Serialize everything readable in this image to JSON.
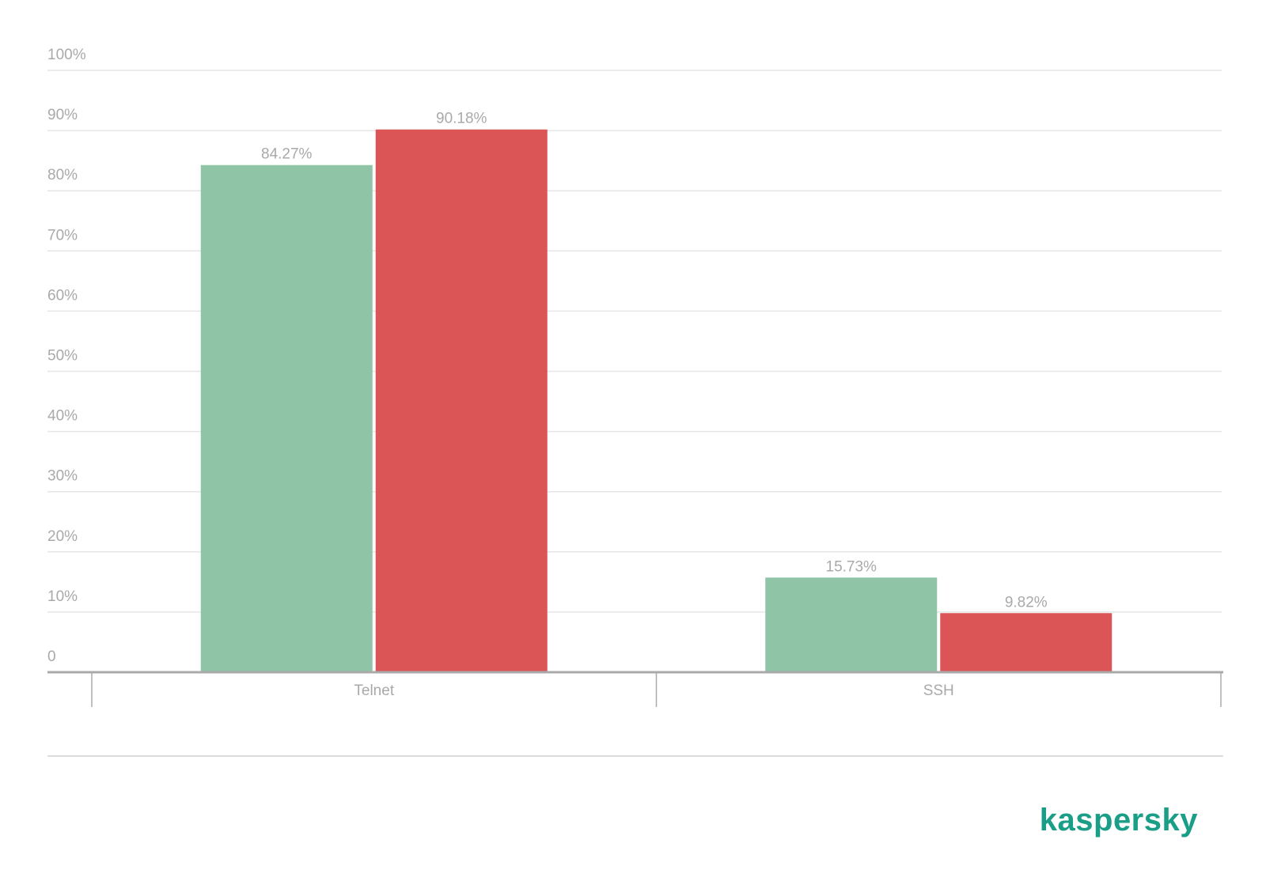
{
  "chart_data": {
    "type": "bar",
    "categories": [
      "Telnet",
      "SSH"
    ],
    "series": [
      {
        "color": "#8fc4a7",
        "values": [
          84.27,
          15.73
        ],
        "value_labels": [
          "84.27%",
          "15.73%"
        ]
      },
      {
        "color": "#db5456",
        "values": [
          90.18,
          9.82
        ],
        "value_labels": [
          "90.18%",
          "9.82%"
        ]
      }
    ],
    "ylim": [
      0,
      100
    ],
    "yticks": [
      0,
      {
        "value": 10,
        "label": "10%"
      },
      {
        "value": 20,
        "label": "20%"
      },
      {
        "value": 30,
        "label": "30%"
      },
      {
        "value": 40,
        "label": "40%"
      },
      {
        "value": 50,
        "label": "50%"
      },
      {
        "value": 60,
        "label": "60%"
      },
      {
        "value": 70,
        "label": "70%"
      },
      {
        "value": 80,
        "label": "80%"
      },
      {
        "value": 90,
        "label": "90%"
      },
      {
        "value": 100,
        "label": "100%"
      }
    ],
    "grid": true
  },
  "brand": "kaspersky"
}
